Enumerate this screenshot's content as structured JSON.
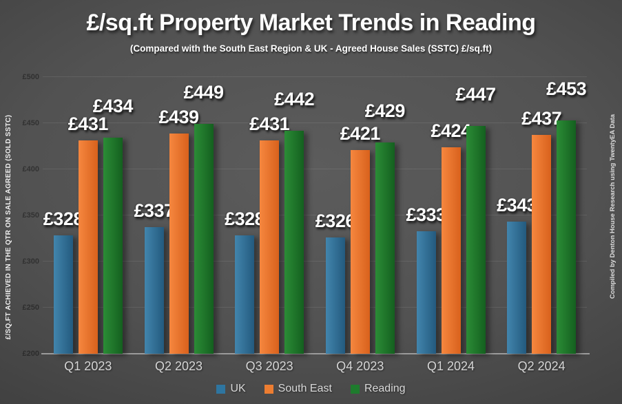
{
  "credit": "Compiled by Denton House Research using TwentyEA Data",
  "background": {
    "center_color": "#575757",
    "edge_color": "#232323"
  },
  "chart_data": {
    "type": "bar",
    "title": "£/sq.ft Property Market Trends in Reading",
    "subtitle": "(Compared with the South East Region & UK - Agreed House Sales (SSTC) £/sq.ft)",
    "xlabel": "",
    "ylabel": "£/SQ.FT ACHIEVED IN THE QTR ON SALE AGREED (SOLD SSTC)",
    "categories": [
      "Q1 2023",
      "Q2 2023",
      "Q3 2023",
      "Q4 2023",
      "Q1 2024",
      "Q2 2024"
    ],
    "series": [
      {
        "name": "UK",
        "color": "#2E75A0",
        "gradient": [
          "#4285AD",
          "#235A7E"
        ],
        "values": [
          328,
          337,
          328,
          326,
          333,
          343
        ]
      },
      {
        "name": "South East",
        "color": "#ED7D31",
        "gradient": [
          "#F6873F",
          "#D8611C"
        ],
        "values": [
          431,
          439,
          431,
          421,
          424,
          437
        ]
      },
      {
        "name": "Reading",
        "color": "#1E7B2D",
        "gradient": [
          "#2B8C36",
          "#14601F"
        ],
        "values": [
          434,
          449,
          442,
          429,
          447,
          453
        ]
      }
    ],
    "ylim": [
      200,
      500
    ],
    "ytick_step": 50,
    "ytick_labels": [
      "£200",
      "£250",
      "£300",
      "£350",
      "£400",
      "£450",
      "£500"
    ],
    "value_prefix": "£",
    "grid": true,
    "legend_position": "bottom"
  }
}
